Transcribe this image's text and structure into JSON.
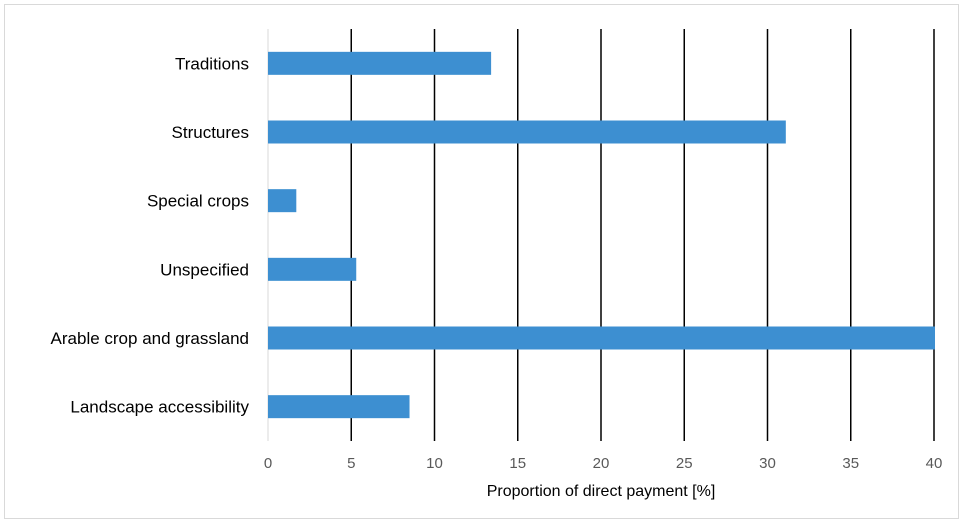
{
  "chart_data": {
    "type": "bar",
    "orientation": "horizontal",
    "categories": [
      "Traditions",
      "Structures",
      "Special crops",
      "Unspecified",
      "Arable crop and grassland",
      "Landscape accessibility"
    ],
    "values": [
      13.4,
      31.1,
      1.7,
      5.3,
      40.1,
      8.5
    ],
    "title": "",
    "xlabel": "Proportion of direct payment [%]",
    "ylabel": "",
    "xlim": [
      0,
      40
    ],
    "x_ticks": [
      "0",
      "5",
      "10",
      "15",
      "20",
      "25",
      "30",
      "35",
      "40"
    ],
    "grid": "vertical",
    "legend": "none",
    "bar_color": "#3d8fd1",
    "grid_color": "#000000",
    "tick_color": "#595959"
  }
}
